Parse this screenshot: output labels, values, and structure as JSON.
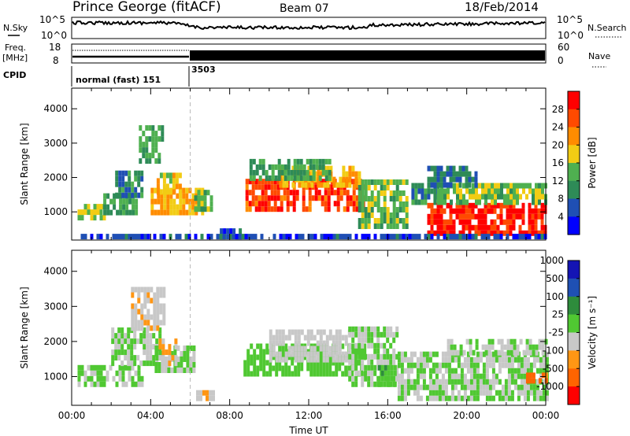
{
  "header": {
    "station": "Prince George (fitACF)",
    "beam": "Beam 07",
    "date": "18/Feb/2014"
  },
  "status_panels": {
    "nsky_label": "N.Sky",
    "nsky_top_tick": "10^5",
    "nsky_bottom_tick": "10^0",
    "nsearch_label": "N.Search",
    "nsearch_top_tick": "10^5",
    "nsearch_bottom_tick": "10^0",
    "freq_label_1": "Freq.",
    "freq_label_2": "[MHz]",
    "freq_top_tick": "18",
    "freq_bottom_tick": "8",
    "nave_label": "Nave",
    "nave_top_tick": "60",
    "nave_bottom_tick": "0",
    "cpid_label": "CPID",
    "cpid_mode_1": "normal (fast) 151",
    "cpid_mode_2": "3503"
  },
  "colors": {
    "power_scale": [
      "#0000ff",
      "#1f4fb4",
      "#2e8b57",
      "#4fb050",
      "#f2cc14",
      "#ff8c00",
      "#ff4a00",
      "#ff0000"
    ],
    "velocity_scale": [
      "#1414b4",
      "#1f50b4",
      "#2e8c3c",
      "#50c832",
      "#c8c8c8",
      "#ff9614",
      "#ff6400",
      "#ff0000"
    ]
  },
  "chart_data": [
    {
      "type": "heatmap",
      "ylabel": "Slant Range [km]",
      "xlabel": "",
      "x_ticks": [
        "00:00",
        "04:00",
        "08:00",
        "12:00",
        "16:00",
        "20:00",
        "00:00"
      ],
      "y_ticks": [
        1000,
        2000,
        3000,
        4000
      ],
      "xlim_hours": [
        0,
        24
      ],
      "ylim_km": [
        180,
        4600
      ],
      "colorbar_label": "Power [dB]",
      "colorbar_ticks": [
        "4",
        "8",
        "12",
        "16",
        "20",
        "24",
        "28"
      ],
      "colorbar_range": [
        0,
        32
      ],
      "mode_change_hour": 6.0,
      "regions": [
        {
          "t0": 0.3,
          "t1": 1.6,
          "r0": 750,
          "r1": 1150,
          "v": 16
        },
        {
          "t0": 1.6,
          "t1": 3.2,
          "r0": 900,
          "r1": 1450,
          "v": 12
        },
        {
          "t0": 2.2,
          "t1": 3.6,
          "r0": 1400,
          "r1": 2200,
          "v": 9
        },
        {
          "t0": 3.4,
          "t1": 4.6,
          "r0": 2400,
          "r1": 3400,
          "v": 12
        },
        {
          "t0": 4.0,
          "t1": 6.6,
          "r0": 900,
          "r1": 1600,
          "v": 20
        },
        {
          "t0": 4.3,
          "t1": 5.5,
          "r0": 1500,
          "r1": 2000,
          "v": 18
        },
        {
          "t0": 6.2,
          "t1": 7.0,
          "r0": 1000,
          "r1": 1600,
          "v": 14
        },
        {
          "t0": 7.5,
          "t1": 8.6,
          "r0": 200,
          "r1": 500,
          "v": 6
        },
        {
          "t0": 8.8,
          "t1": 14.8,
          "r0": 1000,
          "r1": 1900,
          "v": 27
        },
        {
          "t0": 10.5,
          "t1": 14.5,
          "r0": 1700,
          "r1": 2200,
          "v": 20
        },
        {
          "t0": 9.0,
          "t1": 13.0,
          "r0": 1900,
          "r1": 2400,
          "v": 12
        },
        {
          "t0": 14.5,
          "t1": 17.0,
          "r0": 500,
          "r1": 1800,
          "v": 14
        },
        {
          "t0": 17.2,
          "t1": 18.5,
          "r0": 1200,
          "r1": 1700,
          "v": 10
        },
        {
          "t0": 18.0,
          "t1": 24.0,
          "r0": 300,
          "r1": 1250,
          "v": 29
        },
        {
          "t0": 18.5,
          "t1": 24.0,
          "r0": 1200,
          "r1": 1700,
          "v": 15
        },
        {
          "t0": 18.0,
          "t1": 20.5,
          "r0": 1700,
          "r1": 2200,
          "v": 8
        },
        {
          "t0": 0.3,
          "t1": 24.0,
          "r0": 200,
          "r1": 350,
          "v": 5
        }
      ]
    },
    {
      "type": "heatmap",
      "ylabel": "Slant Range [km]",
      "xlabel": "Time UT",
      "x_ticks": [
        "00:00",
        "04:00",
        "08:00",
        "12:00",
        "16:00",
        "20:00",
        "00:00"
      ],
      "y_ticks": [
        1000,
        2000,
        3000,
        4000
      ],
      "xlim_hours": [
        0,
        24
      ],
      "ylim_km": [
        180,
        4600
      ],
      "colorbar_label": "Velocity [m s⁻¹]",
      "colorbar_ticks": [
        "1000",
        "500",
        "100",
        "25",
        "-25",
        "-100",
        "-500",
        "-1000"
      ],
      "colorbar_range": [
        -1200,
        1200
      ],
      "mode_change_hour": 6.0,
      "regions": [
        {
          "t0": 0.3,
          "t1": 3.5,
          "r0": 700,
          "r1": 1300,
          "v": 0
        },
        {
          "t0": 2.0,
          "t1": 4.5,
          "r0": 1300,
          "r1": 2300,
          "v": 0
        },
        {
          "t0": 3.0,
          "t1": 4.6,
          "r0": 2300,
          "r1": 3400,
          "v": -200
        },
        {
          "t0": 4.2,
          "t1": 6.2,
          "r0": 1100,
          "r1": 1800,
          "v": 0
        },
        {
          "t0": 4.4,
          "t1": 5.2,
          "r0": 1300,
          "r1": 2000,
          "v": -300
        },
        {
          "t0": 6.3,
          "t1": 7.2,
          "r0": 300,
          "r1": 600,
          "v": -200
        },
        {
          "t0": 8.7,
          "t1": 14.8,
          "r0": 1000,
          "r1": 1900,
          "v": 150
        },
        {
          "t0": 10.0,
          "t1": 14.0,
          "r0": 1400,
          "r1": 2300,
          "v": -150
        },
        {
          "t0": 14.0,
          "t1": 16.5,
          "r0": 700,
          "r1": 2300,
          "v": 0
        },
        {
          "t0": 15.5,
          "t1": 16.4,
          "r0": 700,
          "r1": 1200,
          "v": 180
        },
        {
          "t0": 16.5,
          "t1": 24.0,
          "r0": 300,
          "r1": 1700,
          "v": 0
        },
        {
          "t0": 19.0,
          "t1": 24.0,
          "r0": 1600,
          "r1": 2000,
          "v": 0
        },
        {
          "t0": 23.0,
          "t1": 24.0,
          "r0": 800,
          "r1": 1100,
          "v": -700
        }
      ]
    }
  ]
}
